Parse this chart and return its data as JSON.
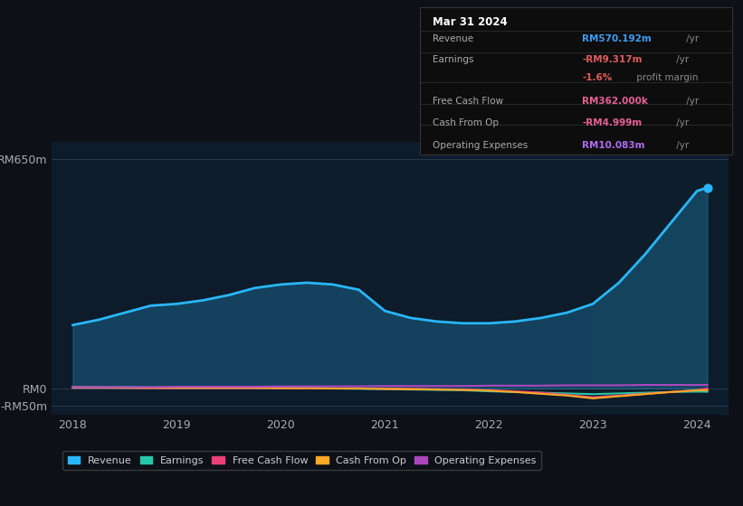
{
  "background_color": "#0d1117",
  "plot_bg_color": "#0d1b2a",
  "title_box_date": "Mar 31 2024",
  "x_years": [
    2018,
    2018.25,
    2018.5,
    2018.75,
    2019,
    2019.25,
    2019.5,
    2019.75,
    2020,
    2020.25,
    2020.5,
    2020.75,
    2021,
    2021.25,
    2021.5,
    2021.75,
    2022,
    2022.25,
    2022.5,
    2022.75,
    2023,
    2023.25,
    2023.5,
    2023.75,
    2024,
    2024.1
  ],
  "revenue": [
    180,
    195,
    215,
    235,
    240,
    250,
    265,
    285,
    295,
    300,
    295,
    280,
    220,
    200,
    190,
    185,
    185,
    190,
    200,
    215,
    240,
    300,
    380,
    470,
    560,
    570
  ],
  "earnings": [
    5,
    4,
    4,
    3,
    3,
    3,
    2,
    2,
    2,
    1,
    0,
    -1,
    -2,
    -3,
    -4,
    -5,
    -8,
    -10,
    -12,
    -14,
    -16,
    -14,
    -12,
    -10,
    -9,
    -9.3
  ],
  "free_cash_flow": [
    2,
    2,
    2,
    1,
    1,
    1,
    1,
    1,
    1,
    0,
    0,
    0,
    -1,
    -1,
    -2,
    -3,
    -5,
    -8,
    -12,
    -18,
    -25,
    -20,
    -15,
    -10,
    -5,
    0.36
  ],
  "cash_from_op": [
    3,
    3,
    2,
    2,
    2,
    2,
    2,
    2,
    1,
    1,
    0,
    0,
    -1,
    -2,
    -3,
    -4,
    -6,
    -10,
    -15,
    -20,
    -28,
    -22,
    -16,
    -10,
    -5,
    -5.0
  ],
  "operating_expenses": [
    4,
    4,
    4,
    4,
    5,
    5,
    5,
    5,
    6,
    6,
    6,
    6,
    7,
    7,
    7,
    7,
    8,
    8,
    8,
    9,
    9,
    9,
    10,
    10,
    10,
    10.08
  ],
  "revenue_color": "#29b6f6",
  "earnings_color": "#26c6a6",
  "free_cash_flow_color": "#ec407a",
  "cash_from_op_color": "#ffa726",
  "operating_expenses_color": "#ab47bc",
  "ylabel_top": "RM650m",
  "ylabel_mid": "RM0",
  "ylabel_bot": "-RM50m",
  "ylim": [
    -75,
    700
  ],
  "xticks": [
    2018,
    2019,
    2020,
    2021,
    2022,
    2023,
    2024
  ],
  "legend_items": [
    {
      "label": "Revenue",
      "color": "#29b6f6"
    },
    {
      "label": "Earnings",
      "color": "#26c6a6"
    },
    {
      "label": "Free Cash Flow",
      "color": "#ec407a"
    },
    {
      "label": "Cash From Op",
      "color": "#ffa726"
    },
    {
      "label": "Operating Expenses",
      "color": "#ab47bc"
    }
  ]
}
